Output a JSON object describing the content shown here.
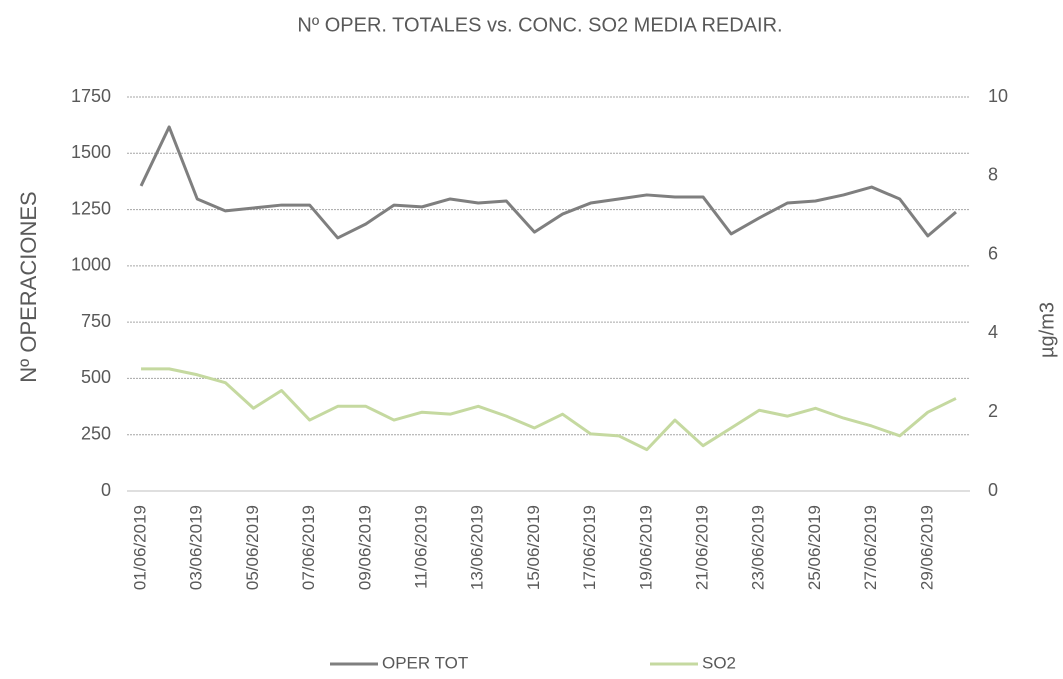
{
  "chart_data": {
    "type": "line",
    "title": "Nº OPER. TOTALES  vs. CONC. SO2 MEDIA REDAIR.",
    "ylabel": "Nº OPERACIONES",
    "y2label": "µg/m3",
    "categories": [
      "01/06/2019",
      null,
      "03/06/2019",
      null,
      "05/06/2019",
      null,
      "07/06/2019",
      null,
      "09/06/2019",
      null,
      "11/06/2019",
      null,
      "13/06/2019",
      null,
      "15/06/2019",
      null,
      "17/06/2019",
      null,
      "19/06/2019",
      null,
      "21/06/2019",
      null,
      "23/06/2019",
      null,
      "25/06/2019",
      null,
      "27/06/2019",
      null,
      "29/06/2019",
      null
    ],
    "series": [
      {
        "name": "OPER TOT",
        "color": "#7f7f7f",
        "values": [
          1355,
          1617,
          1297,
          1244,
          1257,
          1270,
          1270,
          1124,
          1186,
          1270,
          1262,
          1297,
          1279,
          1288,
          1150,
          1230,
          1279,
          1297,
          1315,
          1306,
          1306,
          1142,
          1213,
          1279,
          1288,
          1315,
          1350,
          1297,
          1133,
          1239
        ]
      },
      {
        "name": "SO2",
        "color": "#c5d9a0",
        "axis": "y2",
        "values": [
          3.1,
          3.1,
          2.95,
          2.75,
          2.1,
          2.55,
          1.8,
          2.15,
          2.15,
          1.8,
          2.0,
          1.95,
          2.15,
          1.9,
          1.6,
          1.95,
          1.45,
          1.4,
          1.05,
          1.8,
          1.15,
          1.6,
          2.05,
          1.9,
          2.1,
          1.85,
          1.65,
          1.4,
          2.0,
          2.35
        ]
      }
    ],
    "ylim": [
      0,
      1750
    ],
    "yticks": [
      0,
      250,
      500,
      750,
      1000,
      1250,
      1500,
      1750
    ],
    "y2lim": [
      0,
      10
    ],
    "y2ticks": [
      0,
      2,
      4,
      6,
      8,
      10
    ],
    "grid": true,
    "legend": "bottom"
  }
}
